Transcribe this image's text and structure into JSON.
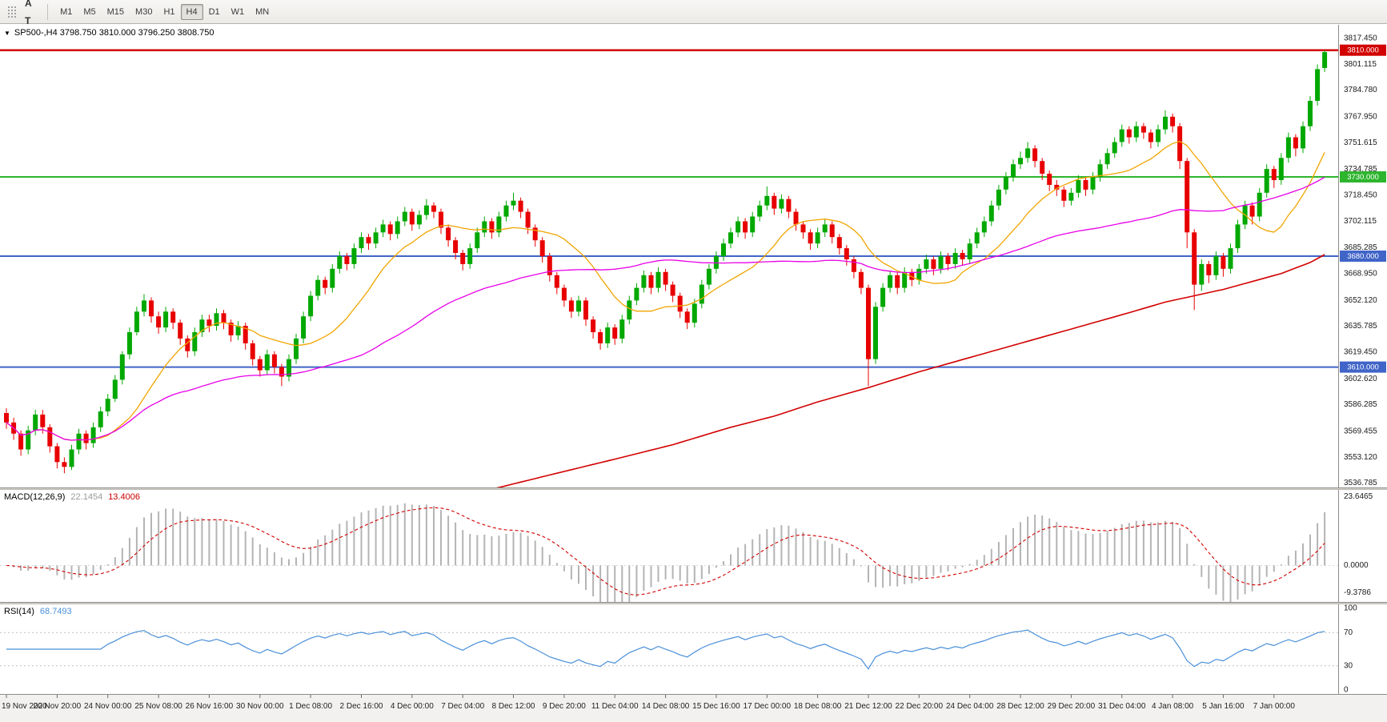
{
  "toolbar": {
    "tools": [
      {
        "name": "charts-grid",
        "label": "▦",
        "color": "#2e7d32"
      },
      {
        "name": "cursor-a-tool",
        "label": "A",
        "color": "#333333"
      },
      {
        "name": "text-tool",
        "label": "T",
        "color": "#333333"
      },
      {
        "name": "indicators",
        "label": "↗",
        "color": "#2e7d32",
        "caret": true
      }
    ],
    "timeframes": [
      "M1",
      "M5",
      "M15",
      "M30",
      "H1",
      "H4",
      "D1",
      "W1",
      "MN"
    ],
    "active_timeframe": "H4"
  },
  "chart_data": {
    "type": "candlestick",
    "symbol": "SP500-",
    "timeframe": "H4",
    "symbol_title": "SP500-,H4 3798.750 3810.000 3796.250 3808.750",
    "ohlc_display": {
      "open": "3798.750",
      "high": "3810.000",
      "low": "3796.250",
      "close": "3808.750"
    },
    "candle_up_color": "#00a800",
    "candle_down_color": "#e80000",
    "price_axis": {
      "labels": [
        "3817.450",
        "3801.115",
        "3784.780",
        "3767.950",
        "3751.615",
        "3734.785",
        "3718.450",
        "3702.115",
        "3685.285",
        "3668.950",
        "3652.120",
        "3635.785",
        "3619.450",
        "3602.620",
        "3586.285",
        "3569.455",
        "3553.120",
        "3536.785"
      ],
      "top_price": 3826,
      "bottom_price": 3534
    },
    "x_axis": {
      "labels": [
        "19 Nov 2020",
        "20 Nov 20:00",
        "24 Nov 00:00",
        "25 Nov 08:00",
        "26 Nov 16:00",
        "30 Nov 00:00",
        "1 Dec 08:00",
        "2 Dec 16:00",
        "4 Dec 00:00",
        "7 Dec 04:00",
        "8 Dec 12:00",
        "9 Dec 20:00",
        "11 Dec 04:00",
        "14 Dec 08:00",
        "15 Dec 16:00",
        "17 Dec 00:00",
        "18 Dec 08:00",
        "21 Dec 12:00",
        "22 Dec 20:00",
        "24 Dec 04:00",
        "28 Dec 12:00",
        "29 Dec 20:00",
        "31 Dec 04:00",
        "4 Jan 08:00",
        "5 Jan 16:00",
        "7 Jan 00:00"
      ],
      "candles_per_label": 7
    },
    "overlays": {
      "hlines": [
        {
          "price": 3810.0,
          "label": "3810.000",
          "color": "#d20000",
          "width": 2.5
        },
        {
          "price": 3730.0,
          "label": "3730.000",
          "color": "#2db52d",
          "width": 2
        },
        {
          "price": 3680.0,
          "label": "3680.000",
          "color": "#4064c8",
          "width": 2
        },
        {
          "price": 3610.0,
          "label": "3610.000",
          "color": "#4064c8",
          "width": 2
        }
      ],
      "ma_fast": {
        "period": 13,
        "color": "#f0a500"
      },
      "ma_mid": {
        "period": 50,
        "color": "#e800e8"
      },
      "ma_slow": {
        "color": "#d20000",
        "points": [
          [
            0,
            3462
          ],
          [
            10,
            3473
          ],
          [
            20,
            3484
          ],
          [
            30,
            3494
          ],
          [
            40,
            3504
          ],
          [
            50,
            3515
          ],
          [
            60,
            3526
          ],
          [
            68,
            3534
          ],
          [
            76,
            3543
          ],
          [
            85,
            3553
          ],
          [
            92,
            3561
          ],
          [
            100,
            3572
          ],
          [
            106,
            3579
          ],
          [
            112,
            3588
          ],
          [
            119,
            3597
          ],
          [
            126,
            3607
          ],
          [
            133,
            3616
          ],
          [
            140,
            3625
          ],
          [
            147,
            3634
          ],
          [
            154,
            3643
          ],
          [
            160,
            3651
          ],
          [
            164,
            3655
          ],
          [
            168,
            3659
          ],
          [
            172,
            3664
          ],
          [
            176,
            3669
          ],
          [
            180,
            3676
          ],
          [
            182,
            3681
          ]
        ]
      }
    },
    "macd": {
      "title": "MACD(12,26,9)",
      "value_main": "22.1454",
      "value_signal": "13.4006",
      "fast": 12,
      "slow": 26,
      "signal": 9,
      "axis_labels": [
        "23.6465",
        "0.0000",
        "-9.3786"
      ],
      "axis_values": [
        23.6465,
        0,
        -9.3786
      ],
      "scale_max": 26,
      "scale_min": -12.5,
      "histogram_color": "#b4b4b4",
      "signal_color": "#d20000"
    },
    "rsi": {
      "title": "RSI(14)",
      "value": "68.7493",
      "period": 14,
      "axis_labels": [
        "100",
        "70",
        "30",
        "0"
      ],
      "axis_values": [
        100,
        70,
        30,
        0
      ],
      "levels": [
        70,
        30
      ],
      "scale_max": 104,
      "scale_min": -4,
      "color": "#4a90d9"
    },
    "candles": [
      [
        3581,
        3584,
        3571,
        3575
      ],
      [
        3575,
        3578,
        3564,
        3568
      ],
      [
        3568,
        3570,
        3554,
        3558
      ],
      [
        3558,
        3573,
        3555,
        3570
      ],
      [
        3570,
        3583,
        3567,
        3580
      ],
      [
        3580,
        3583,
        3568,
        3572
      ],
      [
        3572,
        3574,
        3556,
        3560
      ],
      [
        3560,
        3562,
        3546,
        3550
      ],
      [
        3550,
        3553,
        3543,
        3547
      ],
      [
        3547,
        3561,
        3545,
        3558
      ],
      [
        3558,
        3571,
        3555,
        3568
      ],
      [
        3568,
        3570,
        3558,
        3562
      ],
      [
        3562,
        3575,
        3559,
        3572
      ],
      [
        3572,
        3585,
        3569,
        3582
      ],
      [
        3582,
        3593,
        3579,
        3590
      ],
      [
        3590,
        3605,
        3588,
        3602
      ],
      [
        3602,
        3620,
        3599,
        3618
      ],
      [
        3618,
        3635,
        3615,
        3632
      ],
      [
        3632,
        3648,
        3630,
        3645
      ],
      [
        3645,
        3656,
        3642,
        3652
      ],
      [
        3652,
        3654,
        3638,
        3642
      ],
      [
        3642,
        3645,
        3631,
        3635
      ],
      [
        3635,
        3648,
        3632,
        3645
      ],
      [
        3645,
        3647,
        3634,
        3638
      ],
      [
        3638,
        3640,
        3624,
        3628
      ],
      [
        3628,
        3630,
        3616,
        3620
      ],
      [
        3620,
        3635,
        3617,
        3632
      ],
      [
        3632,
        3643,
        3629,
        3640
      ],
      [
        3640,
        3643,
        3632,
        3636
      ],
      [
        3636,
        3647,
        3633,
        3644
      ],
      [
        3644,
        3646,
        3634,
        3638
      ],
      [
        3638,
        3640,
        3626,
        3630
      ],
      [
        3630,
        3639,
        3627,
        3636
      ],
      [
        3636,
        3638,
        3621,
        3625
      ],
      [
        3625,
        3627,
        3611,
        3615
      ],
      [
        3615,
        3617,
        3604,
        3608
      ],
      [
        3608,
        3621,
        3605,
        3618
      ],
      [
        3618,
        3620,
        3606,
        3610
      ],
      [
        3610,
        3612,
        3598,
        3604
      ],
      [
        3604,
        3618,
        3601,
        3615
      ],
      [
        3615,
        3631,
        3612,
        3628
      ],
      [
        3628,
        3645,
        3625,
        3642
      ],
      [
        3642,
        3658,
        3639,
        3655
      ],
      [
        3655,
        3668,
        3652,
        3665
      ],
      [
        3665,
        3667,
        3656,
        3660
      ],
      [
        3660,
        3675,
        3657,
        3672
      ],
      [
        3672,
        3683,
        3669,
        3680
      ],
      [
        3680,
        3682,
        3671,
        3675
      ],
      [
        3675,
        3688,
        3672,
        3685
      ],
      [
        3685,
        3695,
        3682,
        3692
      ],
      [
        3692,
        3694,
        3684,
        3688
      ],
      [
        3688,
        3698,
        3685,
        3695
      ],
      [
        3695,
        3703,
        3692,
        3700
      ],
      [
        3700,
        3702,
        3690,
        3694
      ],
      [
        3694,
        3705,
        3691,
        3702
      ],
      [
        3702,
        3711,
        3699,
        3708
      ],
      [
        3708,
        3710,
        3696,
        3700
      ],
      [
        3700,
        3709,
        3697,
        3706
      ],
      [
        3706,
        3716,
        3703,
        3712
      ],
      [
        3712,
        3714,
        3704,
        3708
      ],
      [
        3708,
        3710,
        3694,
        3698
      ],
      [
        3698,
        3700,
        3686,
        3690
      ],
      [
        3690,
        3692,
        3678,
        3682
      ],
      [
        3682,
        3684,
        3671,
        3675
      ],
      [
        3675,
        3688,
        3672,
        3685
      ],
      [
        3685,
        3698,
        3682,
        3695
      ],
      [
        3695,
        3705,
        3692,
        3702
      ],
      [
        3702,
        3704,
        3691,
        3695
      ],
      [
        3695,
        3708,
        3692,
        3705
      ],
      [
        3705,
        3715,
        3702,
        3712
      ],
      [
        3712,
        3720,
        3709,
        3715
      ],
      [
        3715,
        3717,
        3704,
        3708
      ],
      [
        3708,
        3710,
        3694,
        3698
      ],
      [
        3698,
        3700,
        3686,
        3690
      ],
      [
        3690,
        3692,
        3676,
        3680
      ],
      [
        3680,
        3682,
        3664,
        3668
      ],
      [
        3668,
        3670,
        3656,
        3660
      ],
      [
        3660,
        3662,
        3648,
        3652
      ],
      [
        3652,
        3654,
        3641,
        3645
      ],
      [
        3645,
        3655,
        3642,
        3652
      ],
      [
        3652,
        3654,
        3636,
        3640
      ],
      [
        3640,
        3642,
        3628,
        3632
      ],
      [
        3632,
        3634,
        3621,
        3625
      ],
      [
        3625,
        3638,
        3622,
        3635
      ],
      [
        3635,
        3637,
        3624,
        3628
      ],
      [
        3628,
        3643,
        3625,
        3640
      ],
      [
        3640,
        3655,
        3637,
        3652
      ],
      [
        3652,
        3663,
        3649,
        3660
      ],
      [
        3660,
        3671,
        3657,
        3668
      ],
      [
        3668,
        3670,
        3656,
        3660
      ],
      [
        3660,
        3673,
        3657,
        3670
      ],
      [
        3670,
        3672,
        3658,
        3662
      ],
      [
        3662,
        3664,
        3651,
        3655
      ],
      [
        3655,
        3657,
        3641,
        3645
      ],
      [
        3645,
        3647,
        3634,
        3638
      ],
      [
        3638,
        3653,
        3635,
        3650
      ],
      [
        3650,
        3665,
        3647,
        3662
      ],
      [
        3662,
        3675,
        3659,
        3672
      ],
      [
        3672,
        3683,
        3669,
        3680
      ],
      [
        3680,
        3691,
        3677,
        3688
      ],
      [
        3688,
        3698,
        3685,
        3695
      ],
      [
        3695,
        3705,
        3692,
        3702
      ],
      [
        3702,
        3704,
        3691,
        3695
      ],
      [
        3695,
        3708,
        3692,
        3705
      ],
      [
        3705,
        3715,
        3702,
        3712
      ],
      [
        3712,
        3724,
        3709,
        3718
      ],
      [
        3718,
        3720,
        3706,
        3710
      ],
      [
        3710,
        3719,
        3707,
        3716
      ],
      [
        3716,
        3718,
        3704,
        3708
      ],
      [
        3708,
        3710,
        3696,
        3700
      ],
      [
        3700,
        3702,
        3691,
        3695
      ],
      [
        3695,
        3697,
        3684,
        3688
      ],
      [
        3688,
        3698,
        3685,
        3695
      ],
      [
        3695,
        3703,
        3692,
        3700
      ],
      [
        3700,
        3702,
        3688,
        3692
      ],
      [
        3692,
        3694,
        3681,
        3685
      ],
      [
        3685,
        3687,
        3674,
        3678
      ],
      [
        3678,
        3680,
        3666,
        3670
      ],
      [
        3670,
        3672,
        3656,
        3660
      ],
      [
        3660,
        3662,
        3598,
        3615
      ],
      [
        3615,
        3651,
        3612,
        3648
      ],
      [
        3648,
        3663,
        3645,
        3660
      ],
      [
        3660,
        3671,
        3657,
        3668
      ],
      [
        3668,
        3670,
        3656,
        3660
      ],
      [
        3660,
        3673,
        3657,
        3670
      ],
      [
        3670,
        3672,
        3661,
        3665
      ],
      [
        3665,
        3675,
        3662,
        3672
      ],
      [
        3672,
        3681,
        3669,
        3678
      ],
      [
        3678,
        3680,
        3668,
        3672
      ],
      [
        3672,
        3683,
        3669,
        3680
      ],
      [
        3680,
        3682,
        3671,
        3675
      ],
      [
        3675,
        3685,
        3672,
        3682
      ],
      [
        3682,
        3684,
        3674,
        3678
      ],
      [
        3678,
        3691,
        3675,
        3688
      ],
      [
        3688,
        3698,
        3685,
        3695
      ],
      [
        3695,
        3705,
        3692,
        3702
      ],
      [
        3702,
        3715,
        3699,
        3712
      ],
      [
        3712,
        3725,
        3709,
        3722
      ],
      [
        3722,
        3733,
        3719,
        3730
      ],
      [
        3730,
        3741,
        3727,
        3738
      ],
      [
        3738,
        3746,
        3735,
        3742
      ],
      [
        3742,
        3752,
        3739,
        3748
      ],
      [
        3748,
        3750,
        3736,
        3740
      ],
      [
        3740,
        3742,
        3728,
        3732
      ],
      [
        3732,
        3734,
        3721,
        3725
      ],
      [
        3725,
        3728,
        3718,
        3722
      ],
      [
        3722,
        3724,
        3711,
        3715
      ],
      [
        3715,
        3723,
        3712,
        3720
      ],
      [
        3720,
        3731,
        3717,
        3728
      ],
      [
        3728,
        3730,
        3718,
        3722
      ],
      [
        3722,
        3733,
        3719,
        3730
      ],
      [
        3730,
        3741,
        3727,
        3738
      ],
      [
        3738,
        3748,
        3735,
        3745
      ],
      [
        3745,
        3755,
        3742,
        3752
      ],
      [
        3752,
        3763,
        3749,
        3760
      ],
      [
        3760,
        3762,
        3751,
        3755
      ],
      [
        3755,
        3765,
        3752,
        3762
      ],
      [
        3762,
        3764,
        3754,
        3758
      ],
      [
        3758,
        3760,
        3748,
        3752
      ],
      [
        3752,
        3763,
        3749,
        3760
      ],
      [
        3760,
        3772,
        3757,
        3768
      ],
      [
        3768,
        3770,
        3758,
        3762
      ],
      [
        3762,
        3764,
        3735,
        3740
      ],
      [
        3740,
        3742,
        3685,
        3695
      ],
      [
        3695,
        3697,
        3646,
        3662
      ],
      [
        3662,
        3678,
        3658,
        3675
      ],
      [
        3675,
        3677,
        3663,
        3668
      ],
      [
        3668,
        3683,
        3665,
        3680
      ],
      [
        3680,
        3682,
        3667,
        3672
      ],
      [
        3672,
        3688,
        3669,
        3685
      ],
      [
        3685,
        3703,
        3682,
        3700
      ],
      [
        3700,
        3715,
        3697,
        3712
      ],
      [
        3712,
        3714,
        3700,
        3705
      ],
      [
        3705,
        3723,
        3702,
        3720
      ],
      [
        3720,
        3738,
        3717,
        3735
      ],
      [
        3735,
        3737,
        3723,
        3728
      ],
      [
        3728,
        3745,
        3725,
        3742
      ],
      [
        3742,
        3758,
        3739,
        3755
      ],
      [
        3755,
        3757,
        3743,
        3748
      ],
      [
        3748,
        3765,
        3745,
        3762
      ],
      [
        3762,
        3781,
        3759,
        3778
      ],
      [
        3778,
        3801,
        3775,
        3798
      ],
      [
        3798.75,
        3810,
        3796.25,
        3808.75
      ]
    ]
  }
}
